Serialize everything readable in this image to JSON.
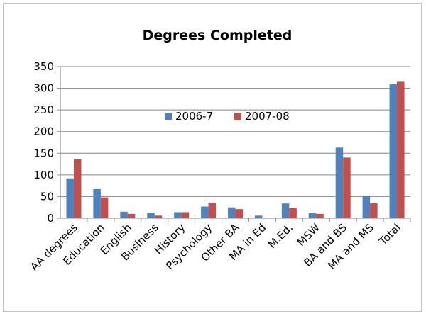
{
  "chart_data": {
    "type": "bar",
    "title": "Degrees Completed",
    "xlabel": "",
    "ylabel": "",
    "ylim": [
      0,
      350
    ],
    "yticks": [
      0,
      50,
      100,
      150,
      200,
      250,
      300,
      350
    ],
    "grid": true,
    "legend_position": "center",
    "categories": [
      "AA degrees",
      "Education",
      "English",
      "Business",
      "History",
      "Psychology",
      "Other BA",
      "MA in Ed",
      "M.Ed.",
      "MSW",
      "BA and BS",
      "MA and MS",
      "Total"
    ],
    "series": [
      {
        "name": "2006-7",
        "color": "#4f81bd",
        "values": [
          92,
          67,
          15,
          12,
          14,
          27,
          25,
          6,
          34,
          12,
          163,
          52,
          309
        ]
      },
      {
        "name": "2007-08",
        "color": "#c0504d",
        "values": [
          136,
          48,
          10,
          6,
          14,
          36,
          21,
          0,
          23,
          10,
          140,
          35,
          315
        ]
      }
    ]
  }
}
